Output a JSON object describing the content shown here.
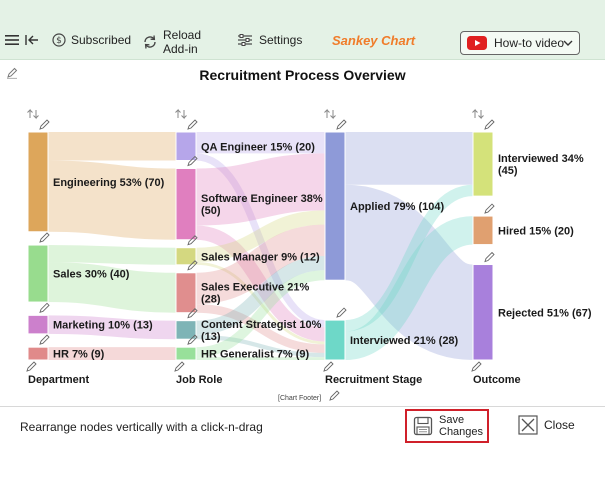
{
  "toolbar": {
    "menu_icon": "hamburger-icon",
    "back_icon": "back-arrow-icon",
    "subscribed_label": "Subscribed",
    "reload_label": "Reload\nAdd-in",
    "settings_label": "Settings",
    "brand": "Sankey Chart",
    "howto_label": "How-to video",
    "colors": {
      "background": "#e4f2e6",
      "brand": "#f07c2a",
      "youtube": "#e02020"
    }
  },
  "chart_data": {
    "type": "sankey",
    "title": "Recruitment Process Overview",
    "footer": "[Chart Footer]",
    "columns": [
      "Department",
      "Job Role",
      "Recruitment Stage",
      "Outcome"
    ],
    "nodes": [
      {
        "id": "eng",
        "column": 0,
        "label": "Engineering 53% (70)",
        "value": 70,
        "color": "#dda65b"
      },
      {
        "id": "sales",
        "column": 0,
        "label": "Sales 30% (40)",
        "value": 40,
        "color": "#98dc8e"
      },
      {
        "id": "mkt",
        "column": 0,
        "label": "Marketing 10% (13)",
        "value": 13,
        "color": "#cc80cc"
      },
      {
        "id": "hr",
        "column": 0,
        "label": "HR 7% (9)",
        "value": 9,
        "color": "#e08a8a"
      },
      {
        "id": "qa",
        "column": 1,
        "label": "QA Engineer 15% (20)",
        "value": 20,
        "color": "#b6a6ea"
      },
      {
        "id": "swe",
        "column": 1,
        "label": "Software Engineer 38% (50)",
        "value": 50,
        "color": "#e07fbf"
      },
      {
        "id": "sm",
        "column": 1,
        "label": "Sales Manager 9% (12)",
        "value": 12,
        "color": "#d4d880"
      },
      {
        "id": "se",
        "column": 1,
        "label": "Sales Executive 21% (28)",
        "value": 28,
        "color": "#e08e8e"
      },
      {
        "id": "cs",
        "column": 1,
        "label": "Content Strategist 10% (13)",
        "value": 13,
        "color": "#7eb4b6"
      },
      {
        "id": "hrg",
        "column": 1,
        "label": "HR Generalist 7% (9)",
        "value": 9,
        "color": "#98e09a"
      },
      {
        "id": "applied",
        "column": 2,
        "label": "Applied 79% (104)",
        "value": 104,
        "color": "#8e9ad8"
      },
      {
        "id": "int2",
        "column": 2,
        "label": "Interviewed 21% (28)",
        "value": 28,
        "color": "#6ed8c8"
      },
      {
        "id": "int3",
        "column": 3,
        "label": "Interviewed 34% (45)",
        "value": 45,
        "color": "#d4e27a"
      },
      {
        "id": "hired",
        "column": 3,
        "label": "Hired 15% (20)",
        "value": 20,
        "color": "#e0a070"
      },
      {
        "id": "rej",
        "column": 3,
        "label": "Rejected 51% (67)",
        "value": 67,
        "color": "#a880dc"
      }
    ],
    "links": [
      {
        "source": "eng",
        "target": "qa",
        "value": 20
      },
      {
        "source": "eng",
        "target": "swe",
        "value": 50
      },
      {
        "source": "sales",
        "target": "sm",
        "value": 12
      },
      {
        "source": "sales",
        "target": "se",
        "value": 28
      },
      {
        "source": "mkt",
        "target": "cs",
        "value": 13
      },
      {
        "source": "hr",
        "target": "hrg",
        "value": 9
      },
      {
        "source": "qa",
        "target": "applied",
        "value": 15
      },
      {
        "source": "qa",
        "target": "int2",
        "value": 5
      },
      {
        "source": "swe",
        "target": "applied",
        "value": 40
      },
      {
        "source": "swe",
        "target": "int2",
        "value": 10
      },
      {
        "source": "sm",
        "target": "applied",
        "value": 10
      },
      {
        "source": "sm",
        "target": "int2",
        "value": 2
      },
      {
        "source": "se",
        "target": "applied",
        "value": 22
      },
      {
        "source": "se",
        "target": "int2",
        "value": 6
      },
      {
        "source": "cs",
        "target": "applied",
        "value": 10
      },
      {
        "source": "cs",
        "target": "int2",
        "value": 3
      },
      {
        "source": "hrg",
        "target": "applied",
        "value": 7
      },
      {
        "source": "hrg",
        "target": "int2",
        "value": 2
      },
      {
        "source": "applied",
        "target": "int3",
        "value": 37
      },
      {
        "source": "applied",
        "target": "rej",
        "value": 67
      },
      {
        "source": "int2",
        "target": "int3",
        "value": 8
      },
      {
        "source": "int2",
        "target": "hired",
        "value": 20
      }
    ]
  },
  "bottom": {
    "hint": "Rearrange nodes vertically with a click-n-drag",
    "save_label": "Save\nChanges",
    "close_label": "Close"
  }
}
